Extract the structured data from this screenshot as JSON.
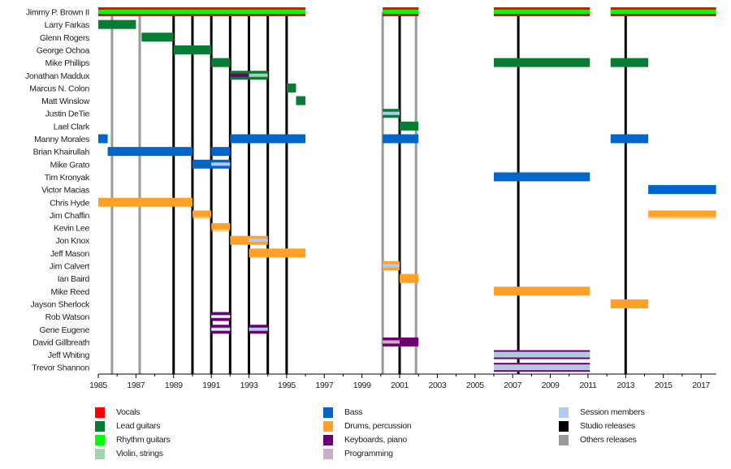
{
  "chart_data": {
    "type": "timeline",
    "title": "",
    "xlabel": "",
    "ylabel": "",
    "xlim": [
      1985,
      2017.8
    ],
    "x_ticks": [
      1985,
      1987,
      1989,
      1991,
      1993,
      1995,
      1997,
      1999,
      2001,
      2003,
      2005,
      2007,
      2009,
      2011,
      2013,
      2015,
      2017
    ],
    "x_minor_ticks_every": 1,
    "colors": {
      "vocals": "#ff0000",
      "lead": "#067c34",
      "rhythm": "#00ff00",
      "violin": "#a3d4a8",
      "bass": "#0066cc",
      "drums": "#ffa126",
      "keyboards": "#6e006e",
      "programming": "#c9aec9",
      "session": "#b3c9f0",
      "studio": "#000000",
      "others": "#9a9a9a"
    },
    "members": [
      {
        "name": "Jimmy P. Brown II",
        "bars": [
          {
            "start": 1985,
            "end": 1996,
            "role": "vocals",
            "inner": "rhythm"
          },
          {
            "start": 2000.1,
            "end": 2002,
            "role": "vocals",
            "inner": "rhythm"
          },
          {
            "start": 2006,
            "end": 2011.1,
            "role": "vocals",
            "inner": "rhythm"
          },
          {
            "start": 2012.2,
            "end": 2017.8,
            "role": "vocals",
            "inner": "rhythm"
          }
        ]
      },
      {
        "name": "Larry Farkas",
        "bars": [
          {
            "start": 1985,
            "end": 1987,
            "role": "lead"
          }
        ]
      },
      {
        "name": "Glenn Rogers",
        "bars": [
          {
            "start": 1987.3,
            "end": 1989,
            "role": "lead"
          }
        ]
      },
      {
        "name": "George Ochoa",
        "bars": [
          {
            "start": 1989,
            "end": 1991,
            "role": "lead"
          }
        ]
      },
      {
        "name": "Mike Phillips",
        "bars": [
          {
            "start": 1991,
            "end": 1992,
            "role": "lead"
          },
          {
            "start": 2006,
            "end": 2011.1,
            "role": "lead"
          },
          {
            "start": 2012.2,
            "end": 2014.2,
            "role": "lead"
          }
        ]
      },
      {
        "name": "Jonathan Maddux",
        "bars": [
          {
            "start": 1992,
            "end": 1993,
            "role": "lead",
            "inner": "keyboards"
          },
          {
            "start": 1993,
            "end": 1994,
            "role": "lead",
            "inner": "violin"
          }
        ]
      },
      {
        "name": "Marcus N. Colon",
        "bars": [
          {
            "start": 1995,
            "end": 1995.5,
            "role": "lead"
          }
        ]
      },
      {
        "name": "Matt Winslow",
        "bars": [
          {
            "start": 1995.5,
            "end": 1996,
            "role": "lead"
          }
        ]
      },
      {
        "name": "Justin DeTie",
        "bars": [
          {
            "start": 2000.1,
            "end": 2001,
            "role": "lead",
            "inner": "session"
          }
        ]
      },
      {
        "name": "Lael Clark",
        "bars": [
          {
            "start": 2001,
            "end": 2002,
            "role": "lead"
          }
        ]
      },
      {
        "name": "Manny Morales",
        "bars": [
          {
            "start": 1985,
            "end": 1985.5,
            "role": "bass"
          },
          {
            "start": 1992,
            "end": 1996,
            "role": "bass"
          },
          {
            "start": 2000.1,
            "end": 2002,
            "role": "bass"
          },
          {
            "start": 2012.2,
            "end": 2014.2,
            "role": "bass"
          }
        ]
      },
      {
        "name": "Brian Khairullah",
        "bars": [
          {
            "start": 1985.5,
            "end": 1990,
            "role": "bass"
          },
          {
            "start": 1991,
            "end": 1992,
            "role": "bass"
          }
        ]
      },
      {
        "name": "Mike Grato",
        "bars": [
          {
            "start": 1990,
            "end": 1991,
            "role": "bass"
          },
          {
            "start": 1991,
            "end": 1992,
            "role": "bass",
            "inner": "session"
          }
        ]
      },
      {
        "name": "Tim Kronyak",
        "bars": [
          {
            "start": 2006,
            "end": 2011.1,
            "role": "bass"
          }
        ]
      },
      {
        "name": "Victor Macias",
        "bars": [
          {
            "start": 2014.2,
            "end": 2017.8,
            "role": "bass"
          }
        ]
      },
      {
        "name": "Chris Hyde",
        "bars": [
          {
            "start": 1985,
            "end": 1990,
            "role": "drums"
          }
        ]
      },
      {
        "name": "Jim Chaffin",
        "bars": [
          {
            "start": 1990,
            "end": 1991,
            "role": "drums",
            "faded": true
          },
          {
            "start": 2014.2,
            "end": 2017.8,
            "role": "drums",
            "faded": true
          }
        ]
      },
      {
        "name": "Kevin Lee",
        "bars": [
          {
            "start": 1991,
            "end": 1992,
            "role": "drums",
            "faded": true
          }
        ]
      },
      {
        "name": "Jon Knox",
        "bars": [
          {
            "start": 1992,
            "end": 1993,
            "role": "drums"
          },
          {
            "start": 1993,
            "end": 1994,
            "role": "drums",
            "inner": "session"
          }
        ]
      },
      {
        "name": "Jeff Mason",
        "bars": [
          {
            "start": 1993,
            "end": 1996,
            "role": "drums"
          }
        ]
      },
      {
        "name": "Jim Calvert",
        "bars": [
          {
            "start": 2000.1,
            "end": 2001,
            "role": "drums",
            "inner": "session"
          }
        ]
      },
      {
        "name": "Ian Baird",
        "bars": [
          {
            "start": 2001,
            "end": 2002,
            "role": "drums"
          }
        ]
      },
      {
        "name": "Mike Reed",
        "bars": [
          {
            "start": 2006,
            "end": 2011.1,
            "role": "drums"
          }
        ]
      },
      {
        "name": "Jayson Sherlock",
        "bars": [
          {
            "start": 2012.2,
            "end": 2014.2,
            "role": "drums"
          }
        ]
      },
      {
        "name": "Rob Watson",
        "bars": [
          {
            "start": 1991,
            "end": 1992,
            "role": "keyboards",
            "inner": "session",
            "split": true
          }
        ]
      },
      {
        "name": "Gene Eugene",
        "bars": [
          {
            "start": 1991,
            "end": 1992,
            "role": "keyboards",
            "inner": "session",
            "split": true
          },
          {
            "start": 1993,
            "end": 1994,
            "role": "keyboards",
            "inner": "session"
          }
        ]
      },
      {
        "name": "David Gillbreath",
        "bars": [
          {
            "start": 2000.1,
            "end": 2001,
            "role": "keyboards",
            "inner": "programming"
          },
          {
            "start": 2001,
            "end": 2002,
            "role": "keyboards"
          }
        ]
      },
      {
        "name": "Jeff Whiting",
        "bars": [
          {
            "start": 2006,
            "end": 2011.1,
            "role": "keyboards",
            "inner": "session",
            "thin": true
          }
        ]
      },
      {
        "name": "Trevor Shannon",
        "bars": [
          {
            "start": 2006,
            "end": 2011.1,
            "role": "keyboards",
            "inner": "session",
            "thin": true
          }
        ]
      }
    ],
    "studio_releases": [
      1989,
      1990,
      1991,
      1992,
      1993,
      1994,
      1995,
      2001,
      2007.3,
      2013
    ],
    "other_releases": [
      1985.73,
      1987.2,
      2000.1,
      2001.87
    ],
    "legend": [
      {
        "label": "Vocals",
        "key": "vocals"
      },
      {
        "label": "Lead guitars",
        "key": "lead"
      },
      {
        "label": "Rhythm guitars",
        "key": "rhythm"
      },
      {
        "label": "Violin, strings",
        "key": "violin"
      },
      {
        "label": "Bass",
        "key": "bass"
      },
      {
        "label": "Drums, percussion",
        "key": "drums"
      },
      {
        "label": "Keyboards, piano",
        "key": "keyboards"
      },
      {
        "label": "Programming",
        "key": "programming"
      },
      {
        "label": "Session members",
        "key": "session"
      },
      {
        "label": "Studio releases",
        "key": "studio"
      },
      {
        "label": "Others releases",
        "key": "others"
      }
    ],
    "legend_position": "bottom"
  }
}
